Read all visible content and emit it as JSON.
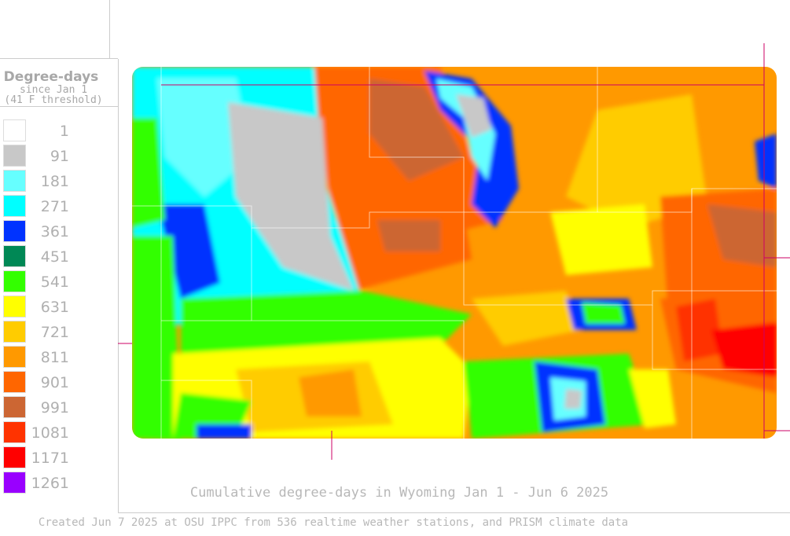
{
  "legend": {
    "title": "Degree-days",
    "subtitle": "since Jan 1",
    "threshold": "(41 F threshold)",
    "items": [
      {
        "label": 1,
        "color": "#ffffff"
      },
      {
        "label": 91,
        "color": "#c8c8c8"
      },
      {
        "label": 181,
        "color": "#66ffff"
      },
      {
        "label": 271,
        "color": "#00ffff"
      },
      {
        "label": 361,
        "color": "#0033ff"
      },
      {
        "label": 451,
        "color": "#008855"
      },
      {
        "label": 541,
        "color": "#33ff00"
      },
      {
        "label": 631,
        "color": "#ffff00"
      },
      {
        "label": 721,
        "color": "#ffcc00"
      },
      {
        "label": 811,
        "color": "#ff9900"
      },
      {
        "label": 901,
        "color": "#ff6600"
      },
      {
        "label": 991,
        "color": "#cc6633"
      },
      {
        "label": 1081,
        "color": "#ff3300"
      },
      {
        "label": 1171,
        "color": "#ff0000"
      },
      {
        "label": 1261,
        "color": "#9900ff"
      }
    ]
  },
  "map": {
    "title": "Cumulative degree-days in Wyoming  Jan 1 - Jun 6 2025"
  },
  "footer": "Created Jun 7 2025 at OSU IPPC from 536 realtime weather stations, and PRISM climate data"
}
